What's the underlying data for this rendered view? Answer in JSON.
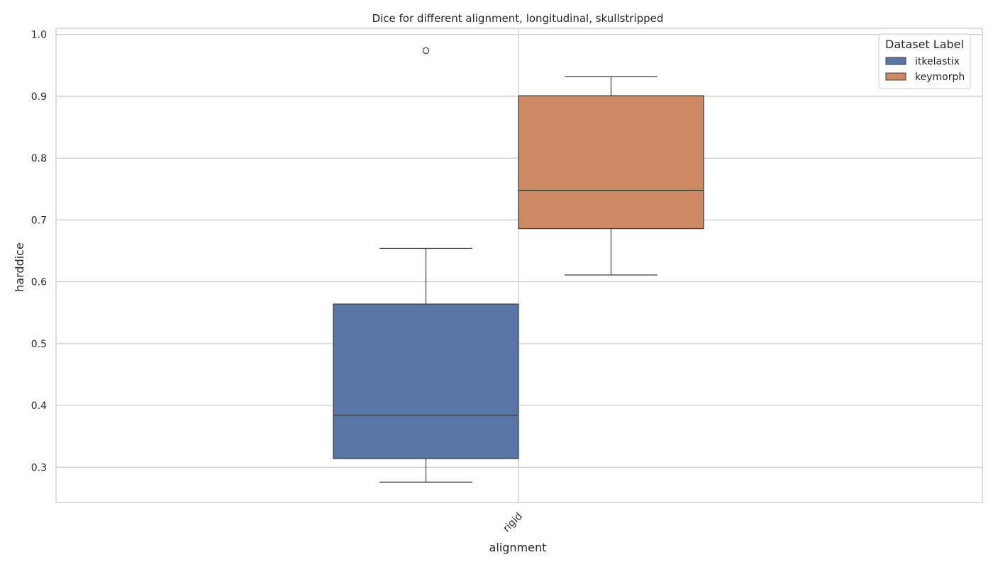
{
  "chart_data": {
    "type": "box",
    "title": "Dice for different alignment, longitudinal, skullstripped",
    "xlabel": "alignment",
    "ylabel": "harddice",
    "categories": [
      "rigid"
    ],
    "ylim": [
      0.243,
      1.01
    ],
    "yticks": [
      0.3,
      0.4,
      0.5,
      0.6,
      0.7,
      0.8,
      0.9,
      1.0
    ],
    "ytick_labels": [
      "0.3",
      "0.4",
      "0.5",
      "0.6",
      "0.7",
      "0.8",
      "0.9",
      "1.0"
    ],
    "grid": true,
    "legend": {
      "title": "Dataset Label",
      "position": "top-right",
      "entries": [
        "itkelastix",
        "keymorph"
      ]
    },
    "series": [
      {
        "name": "itkelastix",
        "color": "#5875a4",
        "whisker_low": 0.276,
        "q1": 0.314,
        "median": 0.384,
        "q3": 0.564,
        "whisker_high": 0.654,
        "outliers": [
          0.974
        ]
      },
      {
        "name": "keymorph",
        "color": "#cc8963",
        "whisker_low": 0.611,
        "q1": 0.686,
        "median": 0.748,
        "q3": 0.901,
        "whisker_high": 0.932,
        "outliers": []
      }
    ]
  }
}
